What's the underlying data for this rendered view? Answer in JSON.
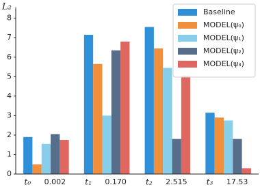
{
  "chart_data": {
    "type": "bar",
    "y_label": "L₂",
    "categories": [
      "t₀",
      "t₁",
      "t₂",
      "t₃"
    ],
    "category_notes": [
      "0.002",
      "0.170",
      "2.515",
      "17.53"
    ],
    "series": [
      {
        "name": "Baseline",
        "color": "#2f8fd8",
        "values": [
          1.9,
          7.15,
          7.55,
          3.15
        ]
      },
      {
        "name": "MODEL(ψ₀)",
        "color": "#f0903c",
        "values": [
          0.5,
          5.65,
          6.45,
          2.9
        ]
      },
      {
        "name": "MODEL(ψ₁)",
        "color": "#87ceeb",
        "values": [
          1.55,
          3.0,
          5.45,
          2.75
        ]
      },
      {
        "name": "MODEL(ψ₂)",
        "color": "#566e8a",
        "values": [
          2.05,
          6.35,
          1.8,
          1.8
        ]
      },
      {
        "name": "MODEL(ψ₃)",
        "color": "#e06660",
        "values": [
          1.75,
          6.8,
          5.05,
          0.3
        ]
      }
    ],
    "ylim": [
      0,
      8.55
    ],
    "yticks": [
      0,
      1,
      2,
      3,
      4,
      5,
      6,
      7,
      8
    ],
    "grid": false,
    "legend": "upper right"
  }
}
